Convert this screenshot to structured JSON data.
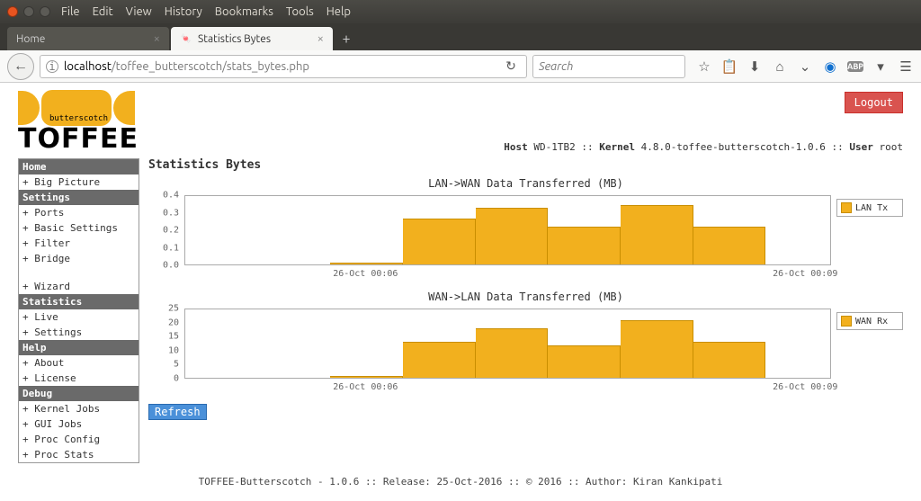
{
  "os_menu": [
    "File",
    "Edit",
    "View",
    "History",
    "Bookmarks",
    "Tools",
    "Help"
  ],
  "tabs": {
    "inactive": "Home",
    "active": "Statistics Bytes"
  },
  "url": {
    "host": "localhost",
    "path": "/toffee_butterscotch/stats_bytes.php"
  },
  "search_placeholder": "Search",
  "logout_label": "Logout",
  "logo": {
    "sub": "butterscotch",
    "main": "TOFFEE"
  },
  "hostline": {
    "host_k": "Host",
    "host_v": "WD-1TB2",
    "kernel_k": "Kernel",
    "kernel_v": "4.8.0-toffee-butterscotch-1.0.6",
    "user_k": "User",
    "user_v": "root"
  },
  "sidebar": [
    {
      "type": "head",
      "label": "Home"
    },
    {
      "type": "item",
      "label": "+ Big Picture"
    },
    {
      "type": "head",
      "label": "Settings"
    },
    {
      "type": "item",
      "label": "+ Ports"
    },
    {
      "type": "item",
      "label": "+ Basic Settings"
    },
    {
      "type": "item",
      "label": "+ Filter"
    },
    {
      "type": "item",
      "label": "+ Bridge"
    },
    {
      "type": "spacer"
    },
    {
      "type": "item",
      "label": "+ Wizard"
    },
    {
      "type": "head",
      "label": "Statistics"
    },
    {
      "type": "item",
      "label": "+ Live"
    },
    {
      "type": "item",
      "label": "+ Settings"
    },
    {
      "type": "head",
      "label": "Help"
    },
    {
      "type": "item",
      "label": "+ About"
    },
    {
      "type": "item",
      "label": "+ License"
    },
    {
      "type": "head",
      "label": "Debug"
    },
    {
      "type": "item",
      "label": "+ Kernel Jobs"
    },
    {
      "type": "item",
      "label": "+ GUI Jobs"
    },
    {
      "type": "item",
      "label": "+ Proc Config"
    },
    {
      "type": "item",
      "label": "+ Proc Stats"
    }
  ],
  "main_title": "Statistics Bytes",
  "refresh_label": "Refresh",
  "charts": [
    {
      "title": "LAN->WAN Data Transferred (MB)",
      "legend": "LAN Tx",
      "y_ticks": [
        "0.0",
        "0.1",
        "0.2",
        "0.3",
        "0.4"
      ],
      "ymax": 0.4,
      "x_ticks": [
        {
          "label": "26-Oct 00:06",
          "pos_pct": 28
        },
        {
          "label": "26-Oct 00:09",
          "pos_pct": 96
        }
      ],
      "bar_color": "#f2b01e",
      "bars": [
        {
          "x_pct": 22.5,
          "w_pct": 11.25,
          "value": 0.01
        },
        {
          "x_pct": 33.75,
          "w_pct": 11.25,
          "value": 0.27
        },
        {
          "x_pct": 45.0,
          "w_pct": 11.25,
          "value": 0.33
        },
        {
          "x_pct": 56.25,
          "w_pct": 11.25,
          "value": 0.22
        },
        {
          "x_pct": 67.5,
          "w_pct": 11.25,
          "value": 0.35
        },
        {
          "x_pct": 78.75,
          "w_pct": 11.25,
          "value": 0.22
        }
      ]
    },
    {
      "title": "WAN->LAN Data Transferred (MB)",
      "legend": "WAN Rx",
      "y_ticks": [
        "0",
        "5",
        "10",
        "15",
        "20",
        "25"
      ],
      "ymax": 25,
      "x_ticks": [
        {
          "label": "26-Oct 00:06",
          "pos_pct": 28
        },
        {
          "label": "26-Oct 00:09",
          "pos_pct": 96
        }
      ],
      "bar_color": "#f2b01e",
      "bars": [
        {
          "x_pct": 22.5,
          "w_pct": 11.25,
          "value": 0.5
        },
        {
          "x_pct": 33.75,
          "w_pct": 11.25,
          "value": 13
        },
        {
          "x_pct": 45.0,
          "w_pct": 11.25,
          "value": 18
        },
        {
          "x_pct": 56.25,
          "w_pct": 11.25,
          "value": 12
        },
        {
          "x_pct": 67.5,
          "w_pct": 11.25,
          "value": 21
        },
        {
          "x_pct": 78.75,
          "w_pct": 11.25,
          "value": 13
        }
      ]
    }
  ],
  "footer": "TOFFEE-Butterscotch - 1.0.6 :: Release: 25-Oct-2016 :: © 2016 :: Author: Kiran Kankipati"
}
